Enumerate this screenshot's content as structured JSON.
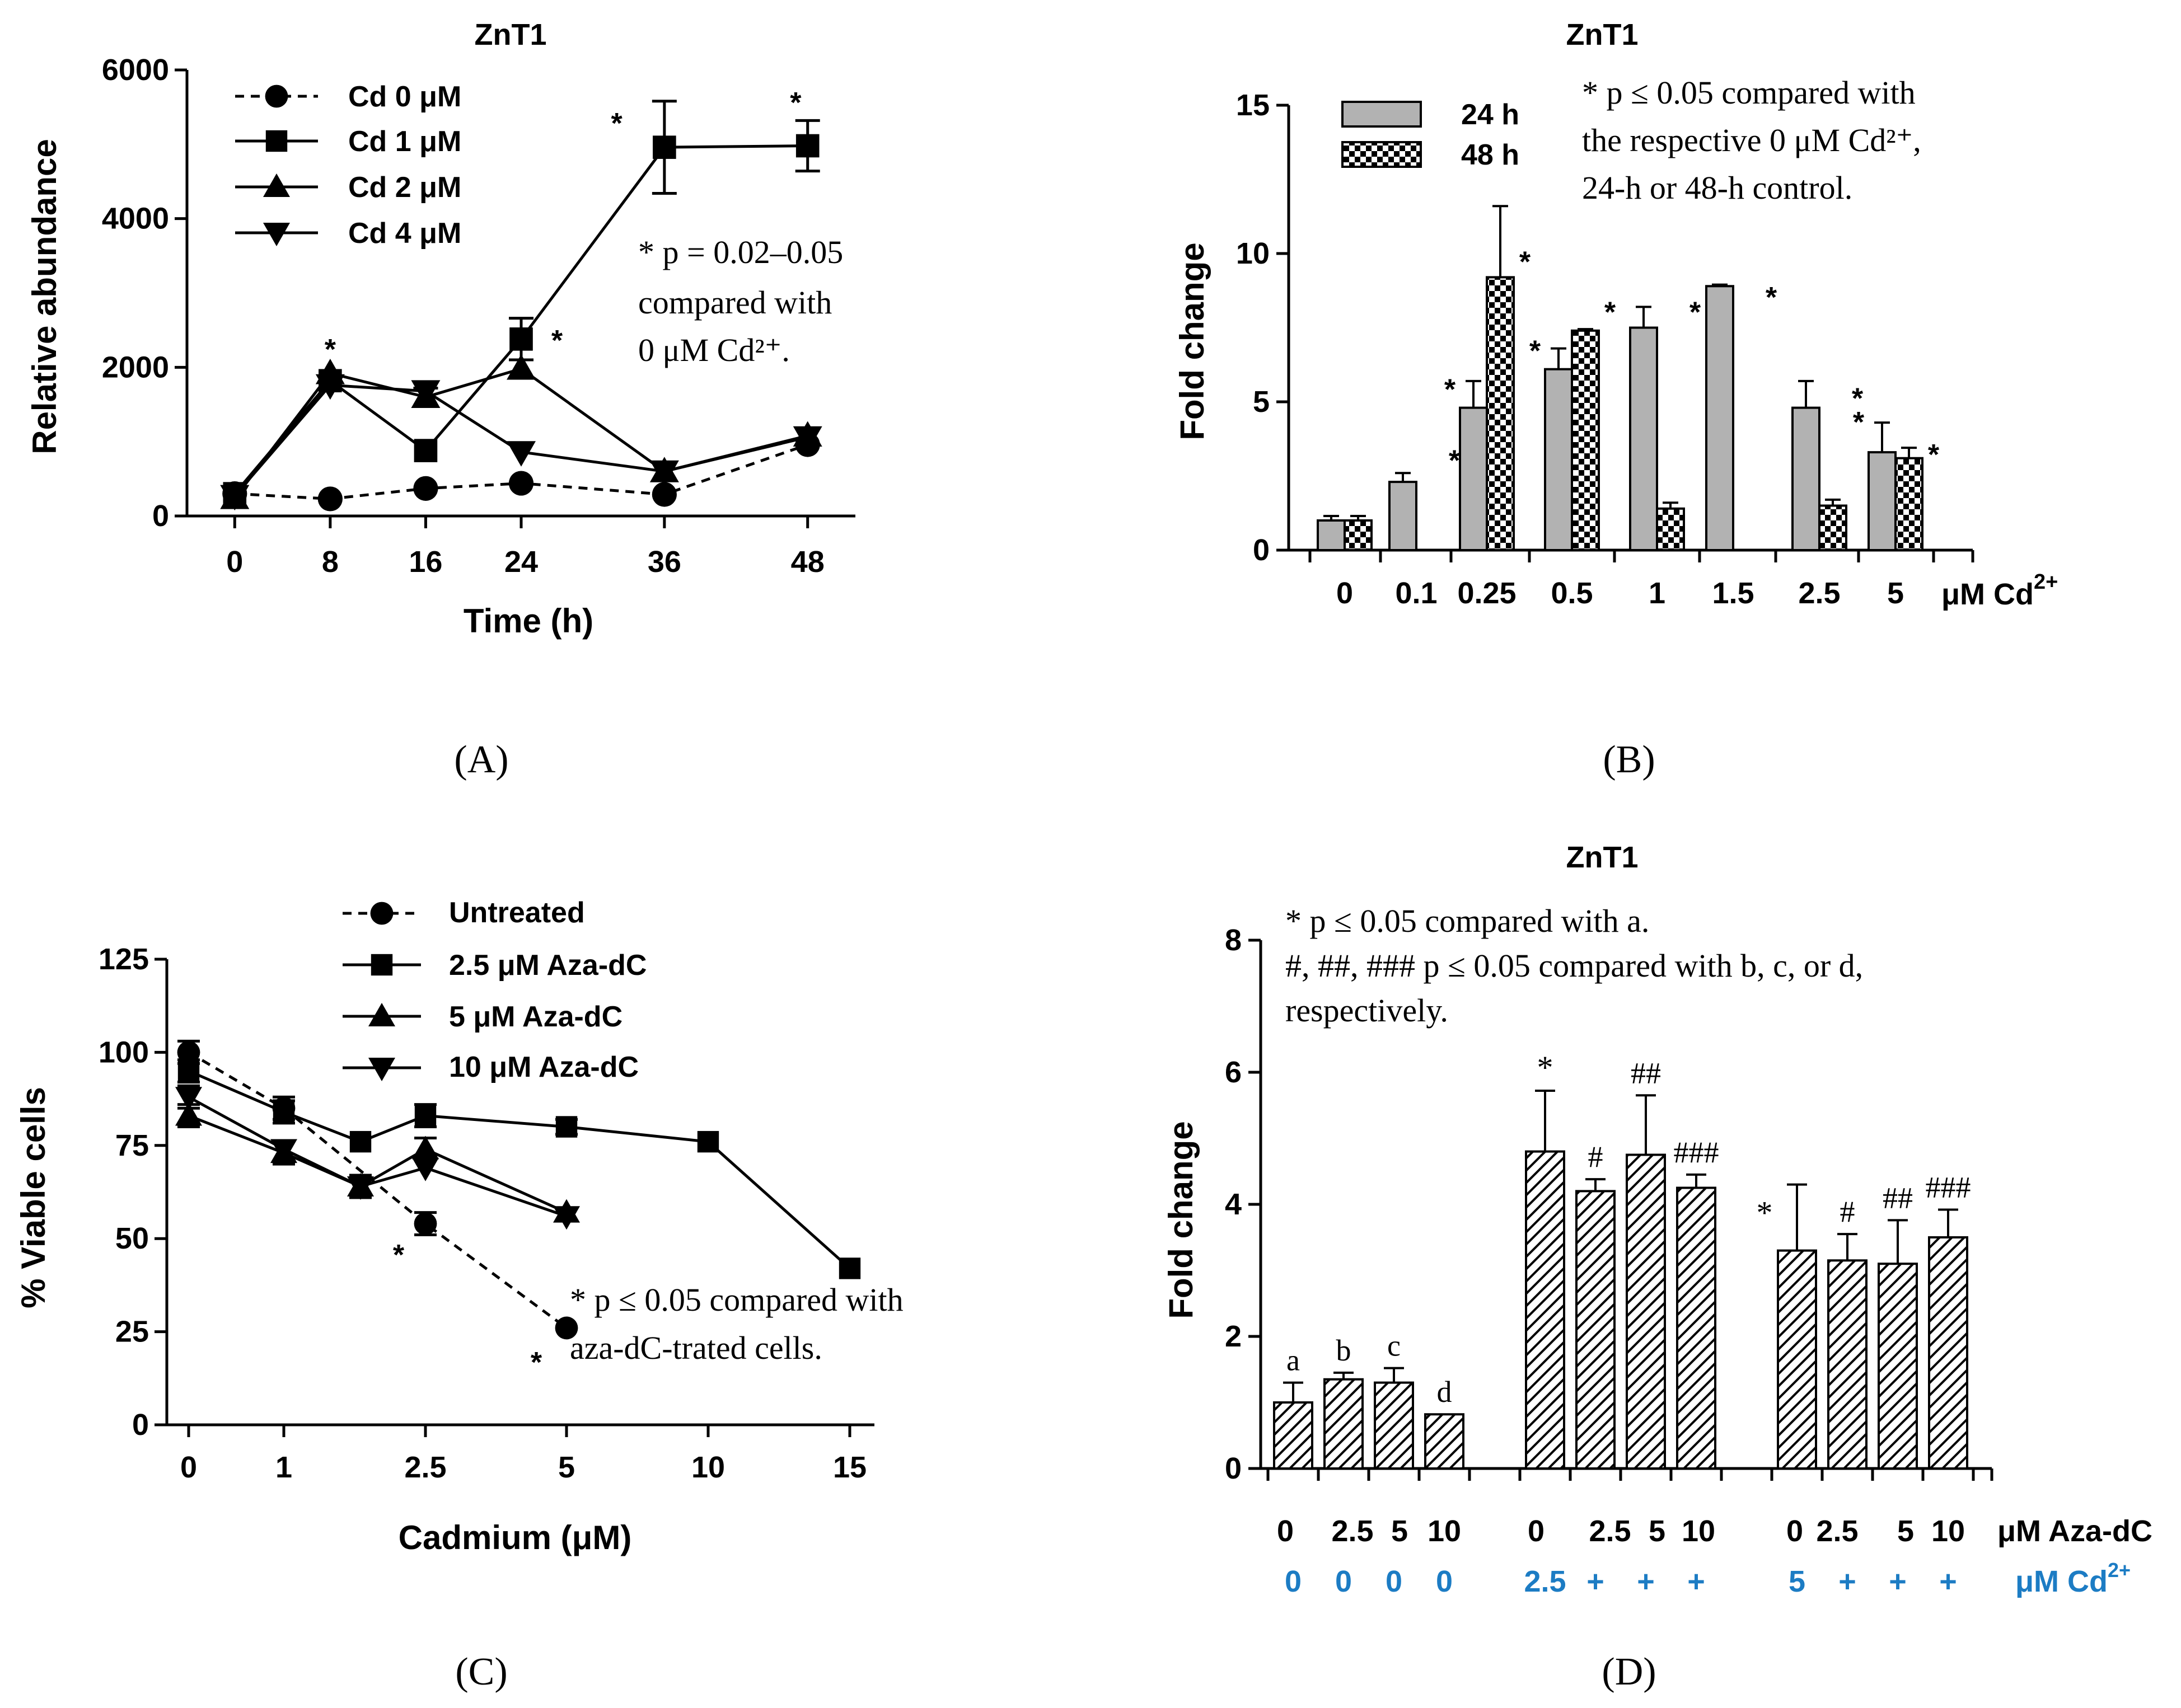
{
  "colors": {
    "ink": "#000000",
    "bar_gray": "#b2b2b2",
    "cd_blue": "#1c7cc4"
  },
  "panels": {
    "A": "(A)",
    "B": "(B)",
    "C": "(C)",
    "D": "(D)"
  },
  "chart_data": [
    {
      "id": "A",
      "type": "line",
      "title": "ZnT1",
      "xlabel": "Time (h)",
      "ylabel": "Relative abundance",
      "x_ticks": [
        "0",
        "8",
        "16",
        "24",
        "36",
        "48"
      ],
      "y_ticks": [
        "0",
        "2000",
        "4000",
        "6000"
      ],
      "xlim": [
        -4,
        52
      ],
      "ylim": [
        0,
        6000
      ],
      "x": [
        0,
        8,
        16,
        24,
        36,
        48
      ],
      "series": [
        {
          "name": "Cd 0 μM",
          "marker": "circle",
          "dashed": true,
          "values": [
            300,
            230,
            370,
            440,
            290,
            960
          ],
          "errors": [
            0,
            0,
            0,
            0,
            0,
            0
          ]
        },
        {
          "name": "Cd 1 μM",
          "marker": "square",
          "dashed": false,
          "values": [
            300,
            1820,
            880,
            2380,
            4960,
            4980
          ],
          "errors": [
            0,
            0,
            0,
            280,
            620,
            340
          ]
        },
        {
          "name": "Cd 2 μM",
          "marker": "up-triangle",
          "dashed": false,
          "values": [
            240,
            1920,
            1600,
            1980,
            600,
            1080
          ],
          "errors": [
            0,
            0,
            120,
            0,
            0,
            0
          ]
        },
        {
          "name": "Cd 4 μM",
          "marker": "down-triangle",
          "dashed": false,
          "values": [
            270,
            1760,
            1680,
            860,
            600,
            1060
          ],
          "errors": [
            0,
            0,
            0,
            0,
            0,
            0
          ]
        }
      ],
      "annotations": [
        {
          "text": "*",
          "x": 8,
          "y": 2260
        },
        {
          "text": "*",
          "x": 27,
          "y": 2380
        },
        {
          "text": "*",
          "x": 32,
          "y": 5300
        },
        {
          "text": "*",
          "x": 47,
          "y": 5580
        }
      ],
      "note": [
        "* p = 0.02–0.05",
        "compared with",
        "0 μM Cd²⁺."
      ]
    },
    {
      "id": "B",
      "type": "bar",
      "title": "ZnT1",
      "xlabel": "μM Cd",
      "xlabel_sup": "2+",
      "ylabel": "Fold change",
      "categories": [
        "0",
        "0.1",
        "0.25",
        "0.5",
        "1",
        "1.5",
        "2.5",
        "5"
      ],
      "y_ticks": [
        "0",
        "5",
        "10",
        "15"
      ],
      "ylim": [
        0,
        15
      ],
      "series": [
        {
          "name": "24 h",
          "pattern": "gray",
          "values": [
            1.0,
            2.3,
            4.8,
            6.1,
            7.5,
            8.9,
            4.8,
            3.3
          ],
          "errors": [
            0.15,
            0.3,
            0.9,
            0.7,
            0.7,
            0.05,
            0.9,
            1.0
          ]
        },
        {
          "name": "48 h",
          "pattern": "checker",
          "values": [
            1.0,
            null,
            9.2,
            7.4,
            1.4,
            null,
            1.5,
            3.1
          ],
          "errors": [
            0.15,
            null,
            2.4,
            0.05,
            0.2,
            null,
            0.2,
            0.35
          ]
        }
      ],
      "stars": [
        {
          "text": "*",
          "category": 1,
          "side": "right",
          "y": 3.1
        },
        {
          "text": "*",
          "category": 2,
          "side": "left",
          "y": 5.5
        },
        {
          "text": "*",
          "category": 2,
          "side": "right",
          "y": 9.8
        },
        {
          "text": "*",
          "category": 3,
          "side": "left",
          "y": 6.8
        },
        {
          "text": "*",
          "category": 3,
          "side": "right",
          "y": 8.1
        },
        {
          "text": "*",
          "category": 4,
          "side": "right",
          "y": 8.1
        },
        {
          "text": "*",
          "category": 5,
          "side": "right",
          "y": 8.6
        },
        {
          "text": "*",
          "category": 6,
          "side": "right",
          "y": 5.2
        },
        {
          "text": "*",
          "category": 7,
          "side": "left",
          "y": 4.4
        },
        {
          "text": "*",
          "category": 7,
          "side": "right",
          "y": 3.3
        }
      ],
      "note": [
        "* p ≤ 0.05 compared with",
        "the respective 0 μM Cd²⁺,",
        "24-h or 48-h control."
      ]
    },
    {
      "id": "C",
      "type": "line",
      "xlabel": "Cadmium (μM)",
      "ylabel": "% Viable cells",
      "x_ticks": [
        "0",
        "1",
        "2.5",
        "5",
        "10",
        "15"
      ],
      "y_ticks": [
        "0",
        "25",
        "50",
        "75",
        "100",
        "125"
      ],
      "ylim": [
        0,
        125
      ],
      "series": [
        {
          "name": "Untreated",
          "marker": "circle",
          "dashed": true,
          "x": [
            0,
            1,
            2.5,
            5
          ],
          "values": [
            100,
            85,
            54,
            26
          ],
          "errors": [
            3,
            3,
            3,
            0
          ]
        },
        {
          "name": "2.5 μM Aza-dC",
          "marker": "square",
          "dashed": false,
          "x": [
            0,
            1,
            2,
            2.5,
            5,
            10,
            15
          ],
          "values": [
            95,
            84,
            76,
            83,
            80,
            76,
            42
          ],
          "errors": [
            3,
            3,
            0,
            3,
            2,
            0,
            0
          ]
        },
        {
          "name": "5 μM Aza-dC",
          "marker": "up-triangle",
          "dashed": false,
          "x": [
            0,
            1,
            2,
            2.5,
            5
          ],
          "values": [
            83,
            73,
            64,
            74,
            57
          ],
          "errors": [
            3,
            3,
            3,
            3,
            0
          ]
        },
        {
          "name": "10 μM Aza-dC",
          "marker": "down-triangle",
          "dashed": false,
          "x": [
            0,
            1,
            2,
            2.5,
            5
          ],
          "values": [
            88,
            74,
            64,
            69,
            56
          ],
          "errors": [
            3,
            0,
            0,
            0,
            0
          ]
        }
      ],
      "annotations": [
        {
          "text": "*",
          "x": 2.4,
          "y": 45
        },
        {
          "text": "*",
          "x": 4.65,
          "y": 19
        }
      ],
      "note": [
        "* p ≤ 0.05 compared with",
        "aza-dC-trated cells."
      ]
    },
    {
      "id": "D",
      "type": "bar",
      "title": "ZnT1",
      "ylabel": "Fold change",
      "y_ticks": [
        "0",
        "2",
        "4",
        "6",
        "8"
      ],
      "ylim": [
        0,
        8
      ],
      "aza_row": [
        "0",
        "2.5",
        "5",
        "10",
        "0",
        "2.5",
        "5",
        "10",
        "0",
        "2.5",
        "5",
        "10"
      ],
      "aza_unit": "μM Aza-dC",
      "cd_row": [
        "0",
        "0",
        "0",
        "0",
        "2.5",
        "+",
        "+",
        "+",
        "5",
        "+",
        "+",
        "+"
      ],
      "cd_unit": "μM Cd",
      "cd_unit_sup": "2+",
      "values": [
        1.0,
        1.35,
        1.3,
        0.82,
        4.8,
        4.2,
        4.75,
        4.25,
        3.3,
        3.15,
        3.1,
        3.5
      ],
      "errors": [
        0.3,
        0.1,
        0.22,
        0.0,
        0.92,
        0.18,
        0.9,
        0.2,
        1.0,
        0.4,
        0.66,
        0.42
      ],
      "bar_labels": [
        "a",
        "b",
        "c",
        "d",
        "*",
        "#",
        "##",
        "###",
        "*",
        "#",
        "##",
        "###"
      ],
      "note": [
        "* p ≤ 0.05 compared with a.",
        "#, ##, ### p ≤ 0.05 compared with b, c, or d,",
        "respectively."
      ]
    }
  ]
}
